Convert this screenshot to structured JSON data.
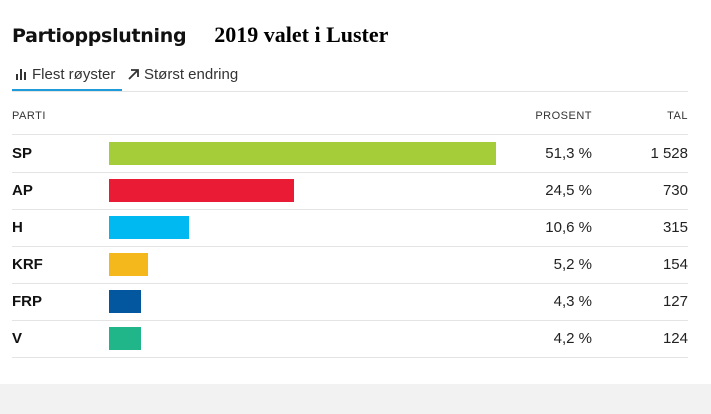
{
  "header": {
    "title": "Partioppslutning",
    "subtitle": "2019 valet i Luster"
  },
  "tabs": [
    {
      "label": "Flest røyster",
      "icon": "bar-chart-icon",
      "active": true
    },
    {
      "label": "Størst endring",
      "icon": "arrow-up-right-icon",
      "active": false
    }
  ],
  "table": {
    "col_party": "PARTI",
    "col_percent": "PROSENT",
    "col_count": "TAL"
  },
  "chart_data": {
    "type": "bar",
    "orientation": "horizontal",
    "categories": [
      "SP",
      "AP",
      "H",
      "KRF",
      "FRP",
      "V"
    ],
    "values": [
      51.3,
      24.5,
      10.6,
      5.2,
      4.3,
      4.2
    ],
    "percent_labels": [
      "51,3 %",
      "24,5 %",
      "10,6 %",
      "5,2 %",
      "4,3 %",
      "4,2 %"
    ],
    "counts": [
      "1 528",
      "730",
      "315",
      "154",
      "127",
      "124"
    ],
    "colors": [
      "#a5cd39",
      "#ea1b34",
      "#00b9f1",
      "#f4b81d",
      "#02579e",
      "#21b58a"
    ],
    "xlim": [
      0,
      51.3
    ]
  }
}
